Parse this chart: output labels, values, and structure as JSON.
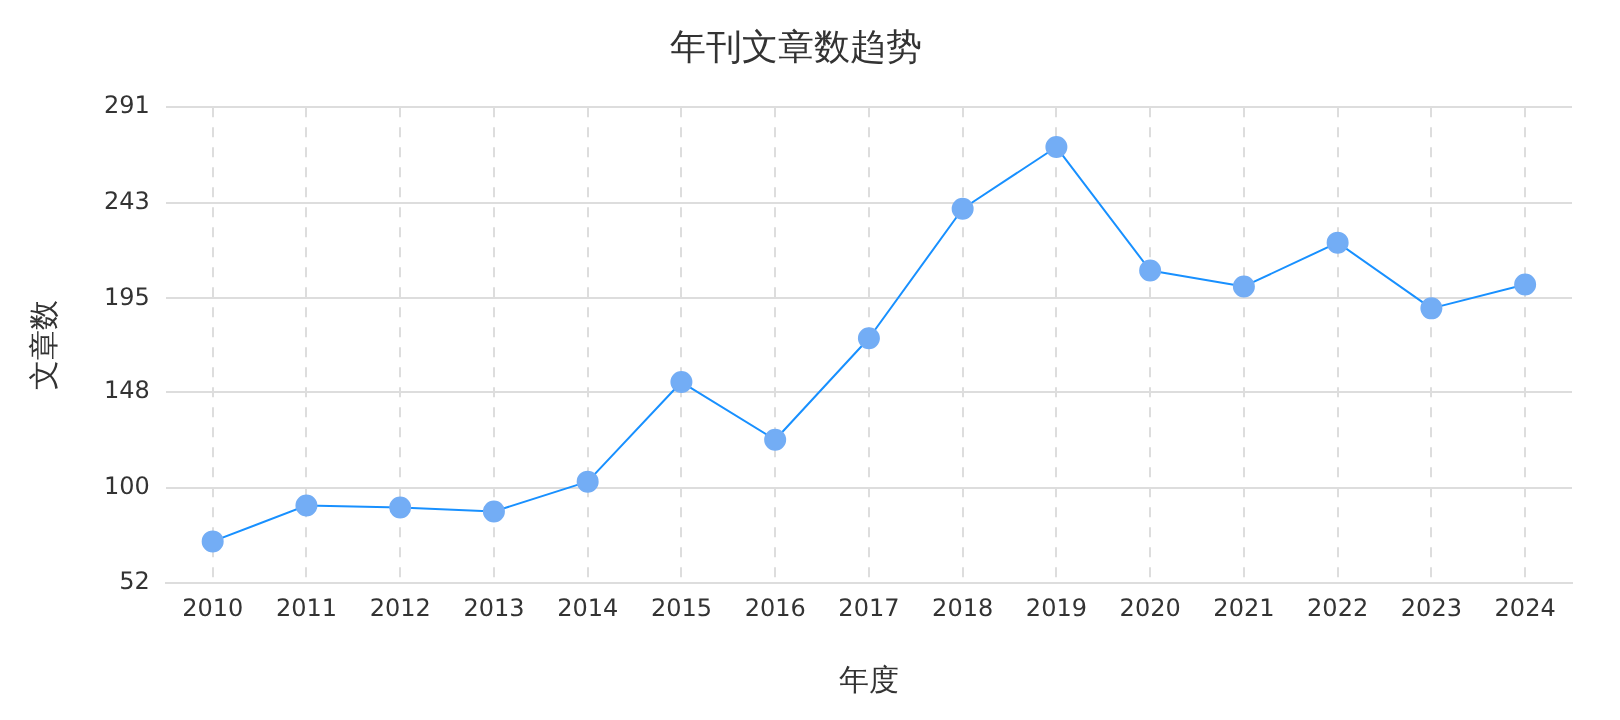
{
  "chart_data": {
    "type": "line",
    "title": "年刊文章数趋势",
    "xlabel": "年度",
    "ylabel": "文章数",
    "categories": [
      "2010",
      "2011",
      "2012",
      "2013",
      "2014",
      "2015",
      "2016",
      "2017",
      "2018",
      "2019",
      "2020",
      "2021",
      "2022",
      "2023",
      "2024"
    ],
    "series": [
      {
        "color": "#1890ff",
        "values": [
          73,
          91,
          90,
          88,
          103,
          153,
          124,
          175,
          240,
          271,
          209,
          201,
          223,
          190,
          202
        ]
      }
    ],
    "ylim": [
      52,
      291
    ],
    "yticks": [
      52,
      100,
      148,
      195,
      243,
      291
    ],
    "grid": true,
    "legend": false,
    "marker": "circle",
    "line_style": "solid"
  }
}
